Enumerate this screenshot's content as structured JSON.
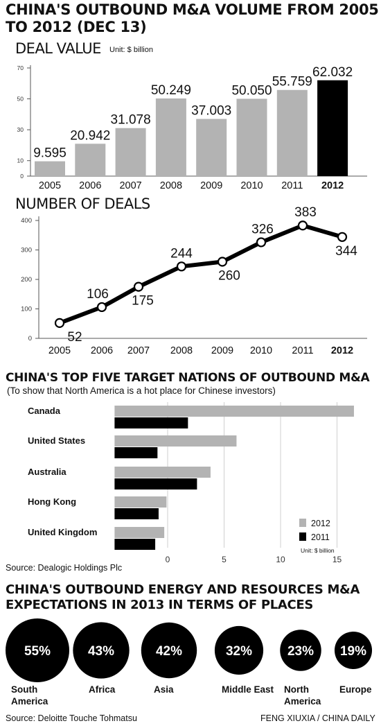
{
  "header": {
    "title": "CHINA'S OUTBOUND M&A VOLUME FROM 2005 TO 2012 (DEC 13)"
  },
  "deal_value": {
    "label": "DEAL VALUE",
    "unit": "Unit: $ billion"
  },
  "number_of_deals": {
    "label": "NUMBER OF DEALS"
  },
  "nations": {
    "title": "CHINA'S TOP FIVE TARGET NATIONS OF OUTBOUND M&A",
    "subtitle": "(To show that North America is a hot place for Chinese investors)",
    "source": "Source: Dealogic Holdings Plc"
  },
  "energy": {
    "title": "CHINA'S OUTBOUND ENERGY AND RESOURCES M&A EXPECTATIONS IN 2013 IN TERMS OF PLACES",
    "source": "Source: Deloitte Touche Tohmatsu"
  },
  "footer": {
    "credit": "FENG XIUXIA / CHINA DAILY"
  },
  "colors": {
    "bar_gray": "#b3b3b3",
    "highlight": "#000000",
    "axis": "#555555"
  },
  "chart_data": [
    {
      "type": "bar",
      "title": "DEAL VALUE",
      "unit": "Unit: $ billion",
      "categories": [
        "2005",
        "2006",
        "2007",
        "2008",
        "2009",
        "2010",
        "2011",
        "2012"
      ],
      "values": [
        9.595,
        20.942,
        31.078,
        50.249,
        37.003,
        50.05,
        55.759,
        62.032
      ],
      "value_labels": [
        "9.595",
        "20.942",
        "31.078",
        "50.249",
        "37.003",
        "50.050",
        "55.759",
        "62.032"
      ],
      "highlight": "2012",
      "yticks": [
        0,
        10,
        30,
        50,
        70
      ],
      "ylim": [
        0,
        70
      ]
    },
    {
      "type": "line",
      "title": "NUMBER OF DEALS",
      "categories": [
        "2005",
        "2006",
        "2007",
        "2008",
        "2009",
        "2010",
        "2011",
        "2012"
      ],
      "values": [
        52,
        106,
        175,
        244,
        260,
        326,
        383,
        344
      ],
      "highlight": "2012",
      "yticks": [
        0,
        100,
        200,
        300,
        400
      ],
      "ylim": [
        0,
        400
      ]
    },
    {
      "type": "bar",
      "orientation": "horizontal",
      "categories": [
        "Canada",
        "United States",
        "Australia",
        "Hong Kong",
        "United Kingdom"
      ],
      "series": [
        {
          "name": "2012",
          "values": [
            16.5,
            6.1,
            3.8,
            -0.1,
            -0.3
          ]
        },
        {
          "name": "2011",
          "values": [
            1.8,
            -0.9,
            2.6,
            -0.8,
            -1.1
          ]
        }
      ],
      "xticks": [
        0,
        5,
        10,
        15
      ],
      "xlim": [
        -4.7,
        16.5
      ],
      "legend_placement": "bottom-right",
      "unit": "Unit: $ billion"
    },
    {
      "type": "bubble",
      "categories": [
        "South America",
        "Africa",
        "Asia",
        "Middle East",
        "North America",
        "Europe"
      ],
      "values": [
        55,
        43,
        42,
        32,
        23,
        19
      ],
      "value_labels": [
        "55%",
        "43%",
        "42%",
        "32%",
        "23%",
        "19%"
      ]
    }
  ]
}
